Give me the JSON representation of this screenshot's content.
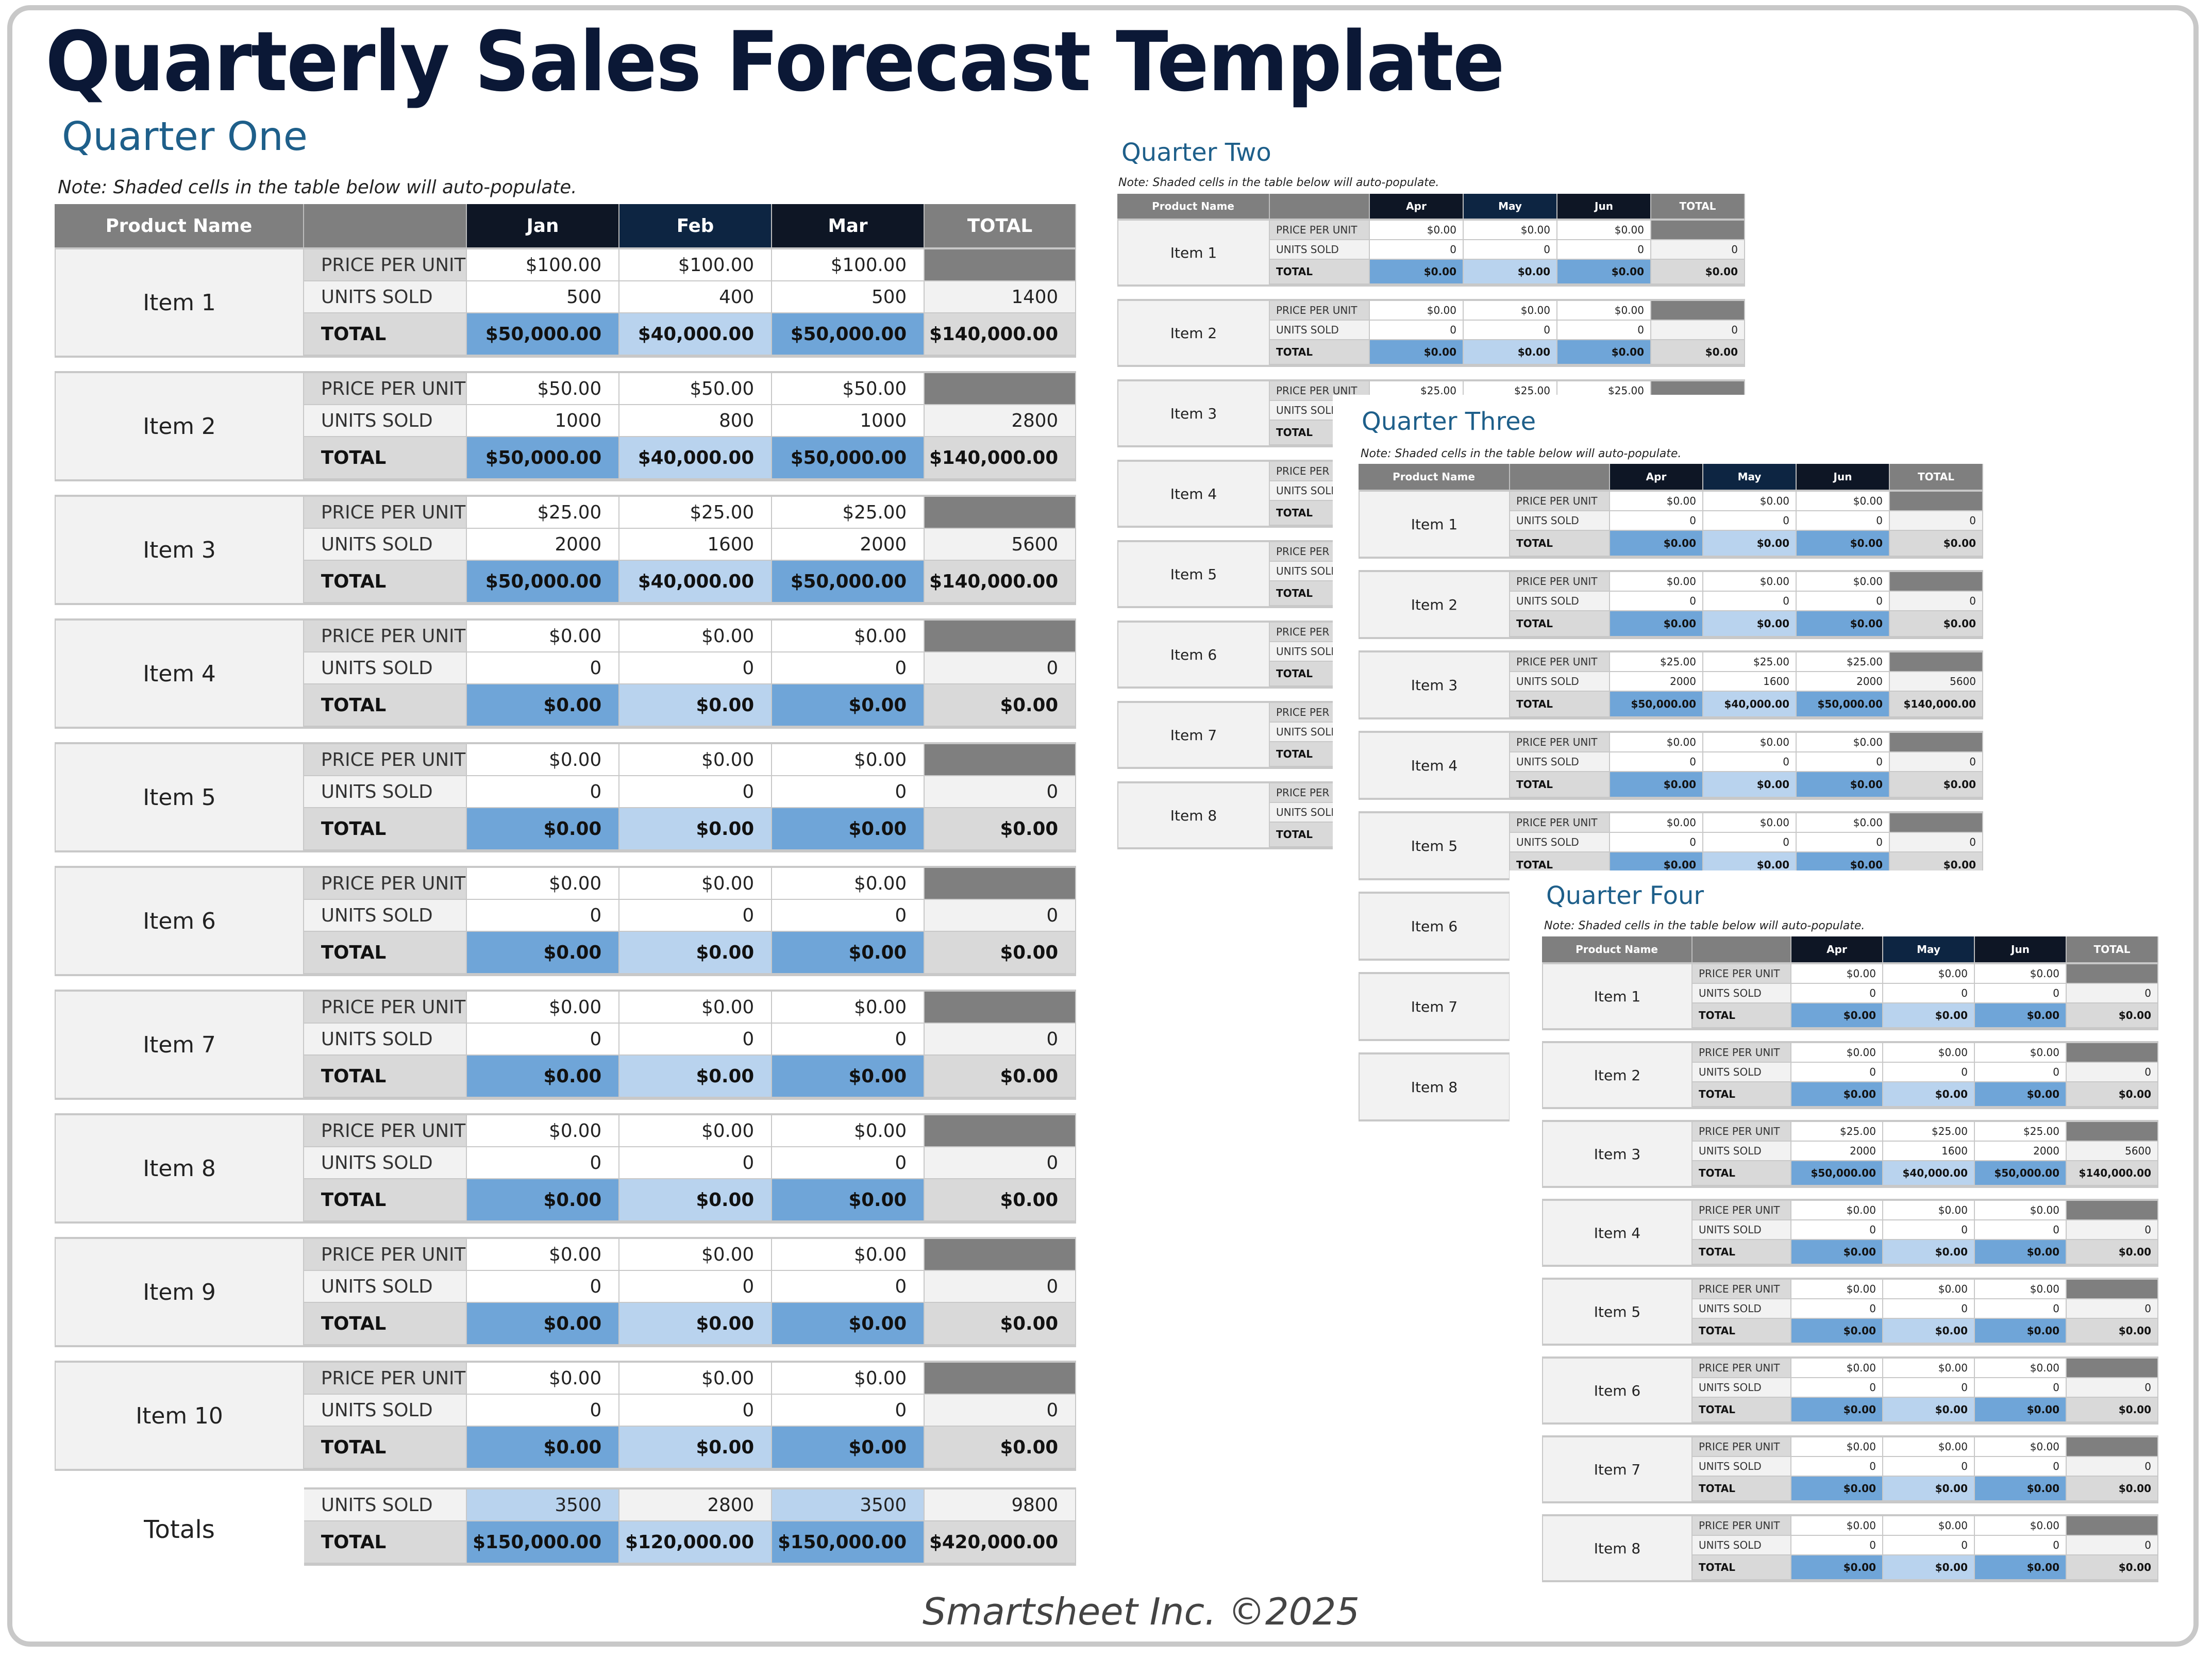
{
  "title": "Quarterly Sales Forecast Template",
  "note": "Note: Shaded cells in the table below will auto-populate.",
  "header": {
    "product_name": "Product Name",
    "total": "TOTAL"
  },
  "row_labels": {
    "price": "PRICE PER UNIT",
    "units": "UNITS SOLD",
    "total": "TOTAL"
  },
  "colors": {
    "title": "#0b1836",
    "quarter_label": "#1e5f8a",
    "header_gray": "#7f7f7f",
    "header_navy": "#0e1625",
    "header_navy_alt": "#0d2542",
    "total_blue": "#6fa5d8",
    "total_light_blue": "#b9d3ee",
    "label_gray": "#d9d9d9",
    "name_bg": "#f2f2f2"
  },
  "quarters": [
    {
      "label": "Quarter One",
      "months": [
        "Jan",
        "Feb",
        "Mar"
      ],
      "items": [
        {
          "name": "Item 1",
          "price": [
            "$100.00",
            "$100.00",
            "$100.00"
          ],
          "units": [
            "500",
            "400",
            "500"
          ],
          "units_total": "1400",
          "totals": [
            "$50,000.00",
            "$40,000.00",
            "$50,000.00"
          ],
          "grand": "$140,000.00"
        },
        {
          "name": "Item 2",
          "price": [
            "$50.00",
            "$50.00",
            "$50.00"
          ],
          "units": [
            "1000",
            "800",
            "1000"
          ],
          "units_total": "2800",
          "totals": [
            "$50,000.00",
            "$40,000.00",
            "$50,000.00"
          ],
          "grand": "$140,000.00"
        },
        {
          "name": "Item 3",
          "price": [
            "$25.00",
            "$25.00",
            "$25.00"
          ],
          "units": [
            "2000",
            "1600",
            "2000"
          ],
          "units_total": "5600",
          "totals": [
            "$50,000.00",
            "$40,000.00",
            "$50,000.00"
          ],
          "grand": "$140,000.00"
        },
        {
          "name": "Item 4",
          "price": [
            "$0.00",
            "$0.00",
            "$0.00"
          ],
          "units": [
            "0",
            "0",
            "0"
          ],
          "units_total": "0",
          "totals": [
            "$0.00",
            "$0.00",
            "$0.00"
          ],
          "grand": "$0.00"
        },
        {
          "name": "Item 5",
          "price": [
            "$0.00",
            "$0.00",
            "$0.00"
          ],
          "units": [
            "0",
            "0",
            "0"
          ],
          "units_total": "0",
          "totals": [
            "$0.00",
            "$0.00",
            "$0.00"
          ],
          "grand": "$0.00"
        },
        {
          "name": "Item 6",
          "price": [
            "$0.00",
            "$0.00",
            "$0.00"
          ],
          "units": [
            "0",
            "0",
            "0"
          ],
          "units_total": "0",
          "totals": [
            "$0.00",
            "$0.00",
            "$0.00"
          ],
          "grand": "$0.00"
        },
        {
          "name": "Item 7",
          "price": [
            "$0.00",
            "$0.00",
            "$0.00"
          ],
          "units": [
            "0",
            "0",
            "0"
          ],
          "units_total": "0",
          "totals": [
            "$0.00",
            "$0.00",
            "$0.00"
          ],
          "grand": "$0.00"
        },
        {
          "name": "Item 8",
          "price": [
            "$0.00",
            "$0.00",
            "$0.00"
          ],
          "units": [
            "0",
            "0",
            "0"
          ],
          "units_total": "0",
          "totals": [
            "$0.00",
            "$0.00",
            "$0.00"
          ],
          "grand": "$0.00"
        },
        {
          "name": "Item 9",
          "price": [
            "$0.00",
            "$0.00",
            "$0.00"
          ],
          "units": [
            "0",
            "0",
            "0"
          ],
          "units_total": "0",
          "totals": [
            "$0.00",
            "$0.00",
            "$0.00"
          ],
          "grand": "$0.00"
        },
        {
          "name": "Item 10",
          "price": [
            "$0.00",
            "$0.00",
            "$0.00"
          ],
          "units": [
            "0",
            "0",
            "0"
          ],
          "units_total": "0",
          "totals": [
            "$0.00",
            "$0.00",
            "$0.00"
          ],
          "grand": "$0.00"
        }
      ],
      "totals": {
        "label": "Totals",
        "units": [
          "3500",
          "2800",
          "3500"
        ],
        "units_total": "9800",
        "totals": [
          "$150,000.00",
          "$120,000.00",
          "$150,000.00"
        ],
        "grand": "$420,000.00"
      }
    },
    {
      "label": "Quarter Two",
      "months": [
        "Apr",
        "May",
        "Jun"
      ],
      "items": [
        {
          "name": "Item 1",
          "price": [
            "$0.00",
            "$0.00",
            "$0.00"
          ],
          "units": [
            "0",
            "0",
            "0"
          ],
          "units_total": "0",
          "totals": [
            "$0.00",
            "$0.00",
            "$0.00"
          ],
          "grand": "$0.00"
        },
        {
          "name": "Item 2",
          "price": [
            "$0.00",
            "$0.00",
            "$0.00"
          ],
          "units": [
            "0",
            "0",
            "0"
          ],
          "units_total": "0",
          "totals": [
            "$0.00",
            "$0.00",
            "$0.00"
          ],
          "grand": "$0.00"
        },
        {
          "name": "Item 3",
          "price": [
            "$25.00",
            "$25.00",
            "$25.00"
          ],
          "units": [
            "",
            "",
            ""
          ],
          "units_total": "",
          "totals": [
            "",
            "",
            ""
          ],
          "grand": ""
        },
        {
          "name": "Item 4"
        },
        {
          "name": "Item 5"
        },
        {
          "name": "Item 6"
        },
        {
          "name": "Item 7"
        },
        {
          "name": "Item 8"
        }
      ]
    },
    {
      "label": "Quarter Three",
      "months": [
        "Apr",
        "May",
        "Jun"
      ],
      "items": [
        {
          "name": "Item 1",
          "price": [
            "$0.00",
            "$0.00",
            "$0.00"
          ],
          "units": [
            "0",
            "0",
            "0"
          ],
          "units_total": "0",
          "totals": [
            "$0.00",
            "$0.00",
            "$0.00"
          ],
          "grand": "$0.00"
        },
        {
          "name": "Item 2",
          "price": [
            "$0.00",
            "$0.00",
            "$0.00"
          ],
          "units": [
            "0",
            "0",
            "0"
          ],
          "units_total": "0",
          "totals": [
            "$0.00",
            "$0.00",
            "$0.00"
          ],
          "grand": "$0.00"
        },
        {
          "name": "Item 3",
          "price": [
            "$25.00",
            "$25.00",
            "$25.00"
          ],
          "units": [
            "2000",
            "1600",
            "2000"
          ],
          "units_total": "5600",
          "totals": [
            "$50,000.00",
            "$40,000.00",
            "$50,000.00"
          ],
          "grand": "$140,000.00"
        },
        {
          "name": "Item 4",
          "price": [
            "$0.00",
            "$0.00",
            "$0.00"
          ],
          "units": [
            "0",
            "0",
            "0"
          ],
          "units_total": "0",
          "totals": [
            "$0.00",
            "$0.00",
            "$0.00"
          ],
          "grand": "$0.00"
        },
        {
          "name": "Item 5",
          "price": [
            "$0.00",
            "$0.00",
            "$0.00"
          ],
          "units": [
            "0",
            "0",
            "0"
          ],
          "units_total": "0",
          "totals": [
            "$0.00",
            "$0.00",
            "$0.00"
          ],
          "grand": "$0.00"
        },
        {
          "name": "Item 6"
        },
        {
          "name": "Item 7"
        },
        {
          "name": "Item 8"
        }
      ]
    },
    {
      "label": "Quarter Four",
      "months": [
        "Apr",
        "May",
        "Jun"
      ],
      "items": [
        {
          "name": "Item 1",
          "price": [
            "$0.00",
            "$0.00",
            "$0.00"
          ],
          "units": [
            "0",
            "0",
            "0"
          ],
          "units_total": "0",
          "totals": [
            "$0.00",
            "$0.00",
            "$0.00"
          ],
          "grand": "$0.00"
        },
        {
          "name": "Item 2",
          "price": [
            "$0.00",
            "$0.00",
            "$0.00"
          ],
          "units": [
            "0",
            "0",
            "0"
          ],
          "units_total": "0",
          "totals": [
            "$0.00",
            "$0.00",
            "$0.00"
          ],
          "grand": "$0.00"
        },
        {
          "name": "Item 3",
          "price": [
            "$25.00",
            "$25.00",
            "$25.00"
          ],
          "units": [
            "2000",
            "1600",
            "2000"
          ],
          "units_total": "5600",
          "totals": [
            "$50,000.00",
            "$40,000.00",
            "$50,000.00"
          ],
          "grand": "$140,000.00"
        },
        {
          "name": "Item 4",
          "price": [
            "$0.00",
            "$0.00",
            "$0.00"
          ],
          "units": [
            "0",
            "0",
            "0"
          ],
          "units_total": "0",
          "totals": [
            "$0.00",
            "$0.00",
            "$0.00"
          ],
          "grand": "$0.00"
        },
        {
          "name": "Item 5",
          "price": [
            "$0.00",
            "$0.00",
            "$0.00"
          ],
          "units": [
            "0",
            "0",
            "0"
          ],
          "units_total": "0",
          "totals": [
            "$0.00",
            "$0.00",
            "$0.00"
          ],
          "grand": "$0.00"
        },
        {
          "name": "Item 6",
          "price": [
            "$0.00",
            "$0.00",
            "$0.00"
          ],
          "units": [
            "0",
            "0",
            "0"
          ],
          "units_total": "0",
          "totals": [
            "$0.00",
            "$0.00",
            "$0.00"
          ],
          "grand": "$0.00"
        },
        {
          "name": "Item 7",
          "price": [
            "$0.00",
            "$0.00",
            "$0.00"
          ],
          "units": [
            "0",
            "0",
            "0"
          ],
          "units_total": "0",
          "totals": [
            "$0.00",
            "$0.00",
            "$0.00"
          ],
          "grand": "$0.00"
        },
        {
          "name": "Item 8",
          "price": [
            "$0.00",
            "$0.00",
            "$0.00"
          ],
          "units": [
            "0",
            "0",
            "0"
          ],
          "units_total": "0",
          "totals": [
            "$0.00",
            "$0.00",
            "$0.00"
          ],
          "grand": "$0.00"
        }
      ]
    }
  ],
  "footer": "Smartsheet Inc. ©2025"
}
